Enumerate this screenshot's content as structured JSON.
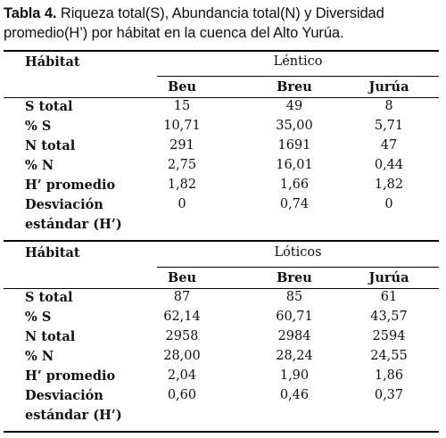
{
  "caption": {
    "label": "Tabla 4.",
    "text": " Riqueza total(S), Abundancia total(N) y Diversidad promedio(H’) por hábitat en la cuenca del Alto Yurúa."
  },
  "sections": [
    {
      "habitat_label": "Hábitat",
      "group": "Léntico",
      "columns": [
        "Beu",
        "Breu",
        "Jurúa"
      ],
      "rows": [
        {
          "label": "S total",
          "values": [
            "15",
            "49",
            "8"
          ]
        },
        {
          "label": "% S",
          "values": [
            "10,71",
            "35,00",
            "5,71"
          ]
        },
        {
          "label": "N total",
          "values": [
            "291",
            "1691",
            "47"
          ]
        },
        {
          "label": "% N",
          "values": [
            "2,75",
            "16,01",
            "0,44"
          ]
        },
        {
          "label": "H’ promedio",
          "values": [
            "1,82",
            "1,66",
            "1,82"
          ]
        },
        {
          "label": "Desviación",
          "label2": "estándar (H’)",
          "values": [
            "0",
            "0,74",
            "0"
          ]
        }
      ]
    },
    {
      "habitat_label": "Hábitat",
      "group": "Lóticos",
      "columns": [
        "Beu",
        "Breu",
        "Jurúa"
      ],
      "rows": [
        {
          "label": "S total",
          "values": [
            "87",
            "85",
            "61"
          ]
        },
        {
          "label": "% S",
          "values": [
            "62,14",
            "60,71",
            "43,57"
          ]
        },
        {
          "label": "N total",
          "values": [
            "2958",
            "2984",
            "2594"
          ]
        },
        {
          "label": "% N",
          "values": [
            "28,00",
            "28,24",
            "24,55"
          ]
        },
        {
          "label": "H’ promedio",
          "values": [
            "2,04",
            "1,90",
            "1,86"
          ]
        },
        {
          "label": "Desviación",
          "label2": "estándar (H’)",
          "values": [
            "0,60",
            "0,46",
            "0,37"
          ]
        }
      ]
    }
  ]
}
